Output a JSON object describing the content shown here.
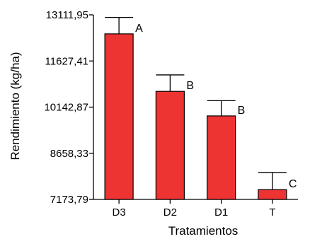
{
  "chart_data": {
    "type": "bar",
    "xlabel": "Tratamientos",
    "ylabel": "Rendimiento (kg/ha)",
    "categories": [
      "D3",
      "D2",
      "D1",
      "T"
    ],
    "values": [
      12500,
      10650,
      9860,
      7490
    ],
    "error_upper": [
      13030,
      11180,
      10350,
      8040
    ],
    "group_labels": [
      "A",
      "B",
      "B",
      "C"
    ],
    "ylim": [
      7173.79,
      13111.95
    ],
    "yticks": [
      7173.79,
      8658.33,
      10142.87,
      11627.41,
      13111.95
    ],
    "ytick_labels": [
      "7173,79",
      "8658,33",
      "10142,87",
      "11627,41",
      "13111,95"
    ],
    "bar_color": "#ee3333",
    "grid": false
  }
}
